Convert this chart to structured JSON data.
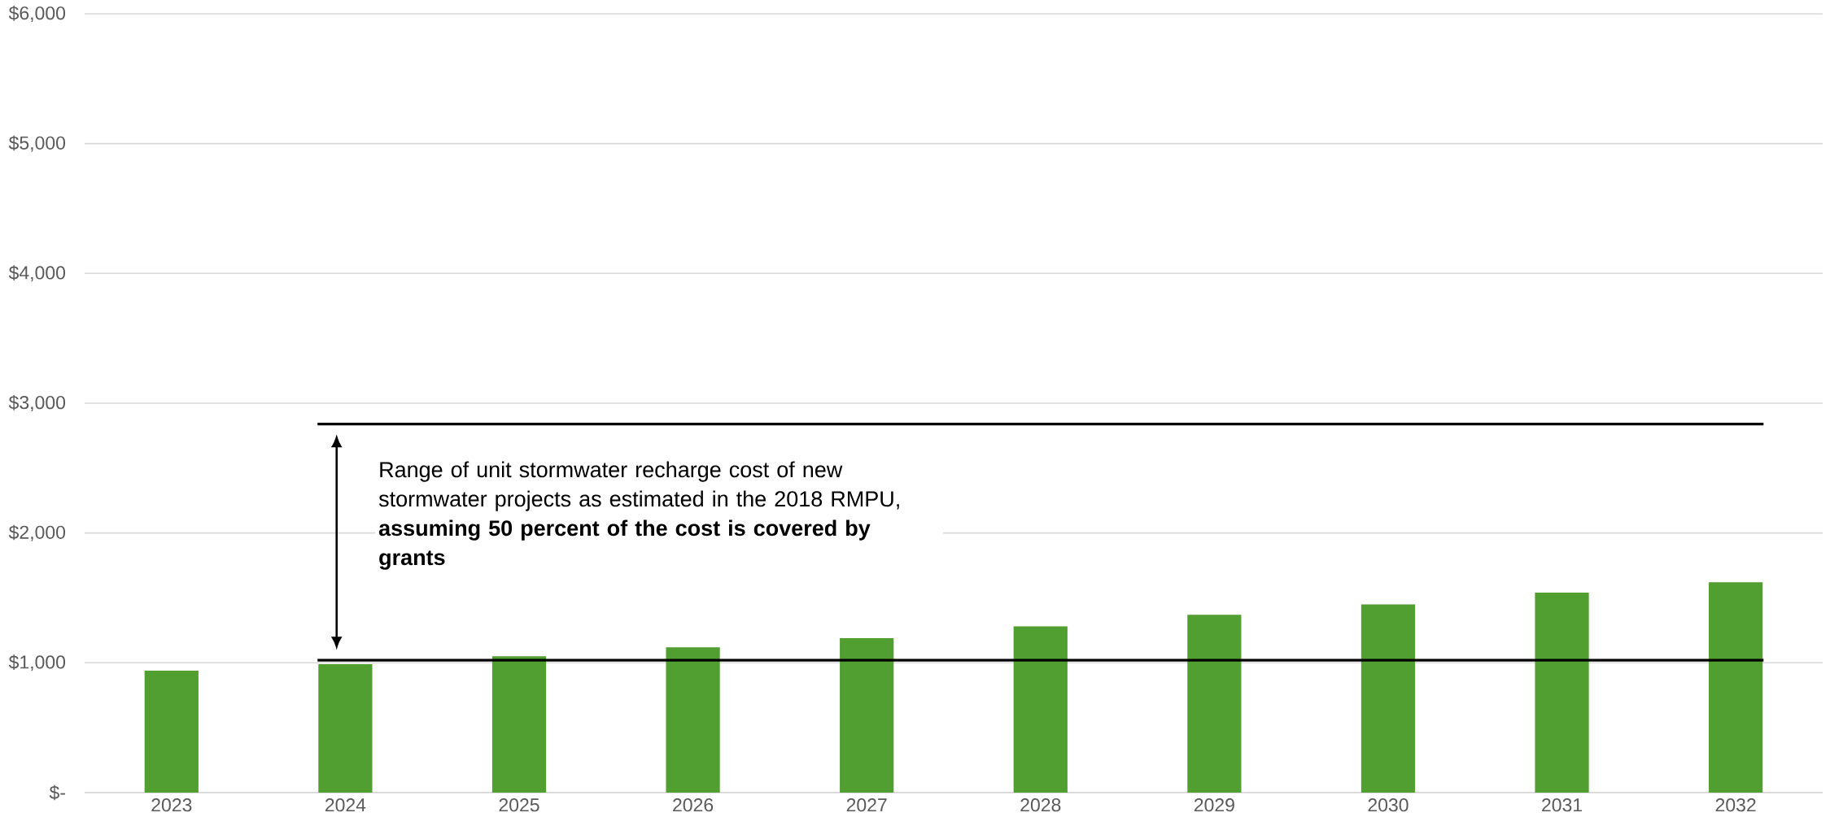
{
  "chart_data": {
    "type": "bar",
    "categories": [
      "2023",
      "2024",
      "2025",
      "2026",
      "2027",
      "2028",
      "2029",
      "2030",
      "2031",
      "2032"
    ],
    "values": [
      940,
      990,
      1050,
      1120,
      1190,
      1280,
      1370,
      1450,
      1540,
      1620
    ],
    "color": "#519e31",
    "ylim": [
      0,
      6000
    ],
    "yticks": [
      {
        "value": 0,
        "label": "$-"
      },
      {
        "value": 1000,
        "label": "$1,000"
      },
      {
        "value": 2000,
        "label": "$2,000"
      },
      {
        "value": 3000,
        "label": "$3,000"
      },
      {
        "value": 4000,
        "label": "$4,000"
      },
      {
        "value": 5000,
        "label": "$5,000"
      },
      {
        "value": 6000,
        "label": "$6,000"
      }
    ],
    "grid": "y",
    "ref_lines": [
      {
        "axis": "y",
        "value": 2840,
        "color": "#000000"
      },
      {
        "axis": "y",
        "value": 1020,
        "color": "#000000"
      }
    ],
    "annotations": [
      "Range of unit stormwater recharge cost of new stormwater projects as estimated in the 2018 RMPU, **assuming 50 percent of the cost is covered by grants**"
    ]
  }
}
